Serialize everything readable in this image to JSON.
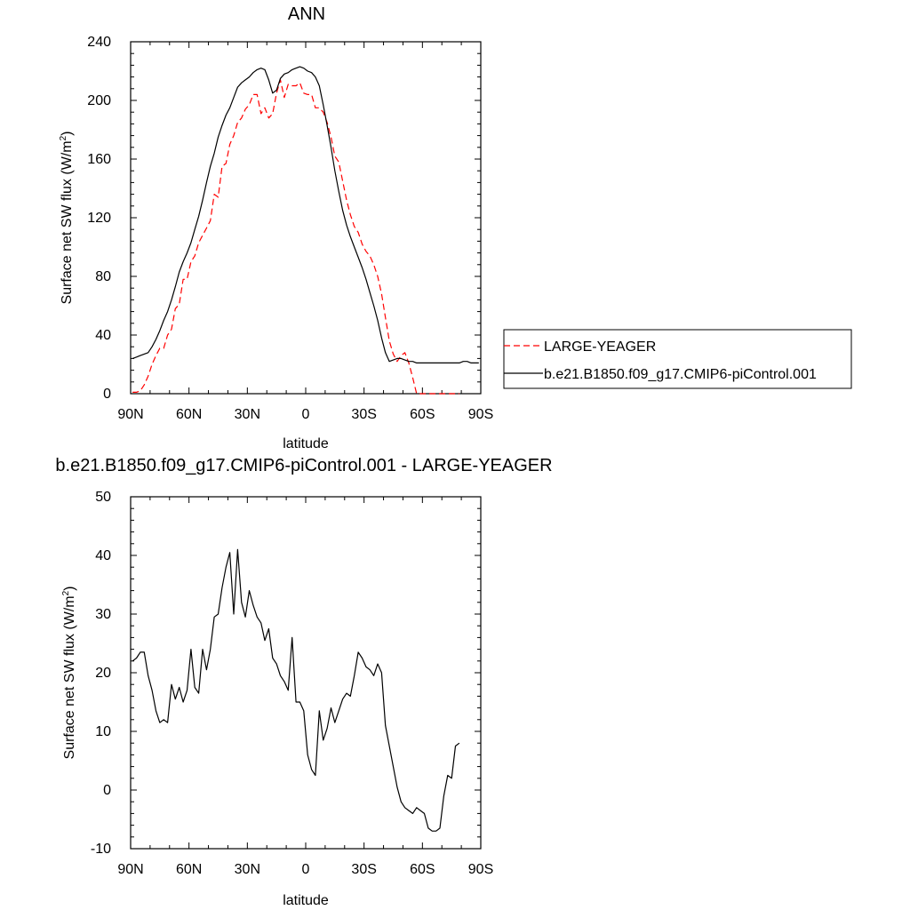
{
  "chart_data": [
    {
      "type": "line",
      "title": "ANN",
      "xlabel": "latitude",
      "ylabel": "Surface net SW flux (W/m",
      "ylabel_sup": "2",
      "ylabel_close": ")",
      "xlim": [
        90,
        -90
      ],
      "ylim": [
        0,
        240
      ],
      "x_tick_values": [
        90,
        60,
        30,
        0,
        -30,
        -60,
        -90
      ],
      "x_tick_labels": [
        "90N",
        "60N",
        "30N",
        "0",
        "30S",
        "60S",
        "90S"
      ],
      "y_tick_values": [
        0,
        40,
        80,
        120,
        160,
        200,
        240
      ],
      "y_tick_labels": [
        "0",
        "40",
        "80",
        "120",
        "160",
        "200",
        "240"
      ],
      "legend": "right",
      "series": [
        {
          "name": "LARGE-YEAGER",
          "color": "#ff0000",
          "dash": true,
          "x": [
            89,
            87,
            85,
            83,
            81,
            79,
            77,
            75,
            73,
            71,
            69,
            67,
            65,
            63,
            61,
            59,
            57,
            55,
            53,
            51,
            49,
            47,
            45,
            43,
            41,
            39,
            37,
            35,
            33,
            31,
            29,
            27,
            25,
            23,
            21,
            19,
            17,
            15,
            13,
            11,
            9,
            7,
            5,
            3,
            1,
            -1,
            -3,
            -5,
            -7,
            -9,
            -11,
            -13,
            -15,
            -17,
            -19,
            -21,
            -23,
            -25,
            -27,
            -29,
            -31,
            -33,
            -35,
            -37,
            -39,
            -41,
            -43,
            -45,
            -47,
            -49,
            -51,
            -53,
            -55,
            -57,
            -59,
            -61,
            -63,
            -65,
            -67,
            -69,
            -71,
            -73,
            -75,
            -77,
            -79
          ],
          "y": [
            1,
            1,
            2,
            6,
            12,
            20,
            26,
            31,
            31,
            40,
            44,
            58,
            61,
            78,
            78,
            90,
            94,
            103,
            108,
            113,
            118,
            136,
            134,
            155,
            157,
            170,
            176,
            185,
            188,
            194,
            197,
            204,
            204,
            191,
            195,
            188,
            191,
            205,
            214,
            202,
            211,
            210,
            210,
            212,
            205,
            204,
            204,
            195,
            195,
            192,
            185,
            175,
            162,
            158,
            145,
            132,
            122,
            114,
            110,
            102,
            97,
            94,
            88,
            80,
            68,
            52,
            36,
            27,
            22,
            26,
            28,
            21,
            11,
            0,
            0,
            0,
            0,
            0,
            0,
            0,
            0,
            0,
            0,
            0,
            0
          ]
        },
        {
          "name": "b.e21.B1850.f09_g17.CMIP6-piControl.001",
          "color": "#000000",
          "dash": false,
          "x": [
            89,
            87,
            85,
            83,
            81,
            79,
            77,
            75,
            73,
            71,
            69,
            67,
            65,
            63,
            61,
            59,
            57,
            55,
            53,
            51,
            49,
            47,
            45,
            43,
            41,
            39,
            37,
            35,
            33,
            31,
            29,
            27,
            25,
            23,
            21,
            19,
            17,
            15,
            13,
            11,
            9,
            7,
            5,
            3,
            1,
            -1,
            -3,
            -5,
            -7,
            -9,
            -11,
            -13,
            -15,
            -17,
            -19,
            -21,
            -23,
            -25,
            -27,
            -29,
            -31,
            -33,
            -35,
            -37,
            -39,
            -41,
            -43,
            -45,
            -47,
            -49,
            -51,
            -53,
            -55,
            -57,
            -59,
            -61,
            -63,
            -65,
            -67,
            -69,
            -71,
            -73,
            -75,
            -77,
            -79,
            -81,
            -83,
            -85,
            -87,
            -89
          ],
          "y": [
            24,
            25,
            26,
            27,
            28,
            32,
            37,
            43,
            50,
            56,
            64,
            73,
            83,
            90,
            96,
            103,
            112,
            121,
            132,
            144,
            155,
            164,
            175,
            183,
            190,
            195,
            202,
            209,
            212,
            214,
            216,
            219,
            221,
            222,
            221,
            214,
            205,
            207,
            215,
            218,
            219,
            221,
            222,
            223,
            222,
            220,
            219,
            216,
            210,
            197,
            183,
            168,
            152,
            138,
            125,
            115,
            107,
            100,
            93,
            86,
            78,
            69,
            60,
            50,
            38,
            28,
            22,
            23,
            24,
            24,
            23,
            22,
            22,
            21,
            21,
            21,
            21,
            21,
            21,
            21,
            21,
            21,
            21,
            21,
            21,
            22,
            22,
            21,
            21,
            21
          ]
        }
      ]
    },
    {
      "type": "line",
      "title": "b.e21.B1850.f09_g17.CMIP6-piControl.001 - LARGE-YEAGER",
      "xlabel": "latitude",
      "ylabel": "Surface net SW flux (W/m",
      "ylabel_sup": "2",
      "ylabel_close": ")",
      "xlim": [
        90,
        -90
      ],
      "ylim": [
        -10,
        50
      ],
      "x_tick_values": [
        90,
        60,
        30,
        0,
        -30,
        -60,
        -90
      ],
      "x_tick_labels": [
        "90N",
        "60N",
        "30N",
        "0",
        "30S",
        "60S",
        "90S"
      ],
      "y_tick_values": [
        -10,
        0,
        10,
        20,
        30,
        40,
        50
      ],
      "y_tick_labels": [
        "-10",
        "0",
        "10",
        "20",
        "30",
        "40",
        "50"
      ],
      "series": [
        {
          "color": "#000000",
          "dash": false,
          "x": [
            89,
            87,
            85,
            83,
            81,
            79,
            77,
            75,
            73,
            71,
            69,
            67,
            65,
            63,
            61,
            59,
            57,
            55,
            53,
            51,
            49,
            47,
            45,
            43,
            41,
            39,
            37,
            35,
            33,
            31,
            29,
            27,
            25,
            23,
            21,
            19,
            17,
            15,
            13,
            11,
            9,
            7,
            5,
            3,
            1,
            -1,
            -3,
            -5,
            -7,
            -9,
            -11,
            -13,
            -15,
            -17,
            -19,
            -21,
            -23,
            -25,
            -27,
            -29,
            -31,
            -33,
            -35,
            -37,
            -39,
            -41,
            -43,
            -45,
            -47,
            -49,
            -51,
            -53,
            -55,
            -57,
            -59,
            -61,
            -63,
            -65,
            -67,
            -69,
            -71,
            -73,
            -75,
            -77,
            -79
          ],
          "y": [
            22,
            22.5,
            23.5,
            23.5,
            19.5,
            17,
            13.5,
            11.5,
            12,
            11.5,
            18,
            15.5,
            17.5,
            15,
            17,
            24,
            17.5,
            16.5,
            24,
            20.5,
            24,
            29.5,
            30,
            34.5,
            38,
            40.5,
            30,
            41,
            32,
            29.5,
            34,
            31.5,
            29.5,
            28.5,
            25.5,
            27.5,
            22.5,
            21.5,
            19.5,
            18.5,
            17,
            26,
            15,
            15,
            13.5,
            6,
            3.5,
            2.5,
            13.5,
            8.5,
            10.5,
            14,
            11.5,
            13.5,
            15.5,
            16.5,
            16,
            19.5,
            23.5,
            22.5,
            21,
            20.5,
            19.5,
            21.5,
            20,
            11,
            7.5,
            4,
            0.5,
            -2,
            -3,
            -3.5,
            -4,
            -3,
            -3.5,
            -4,
            -6.5,
            -7,
            -7,
            -6.5,
            -1,
            2.5,
            2,
            7.5,
            8
          ]
        }
      ]
    }
  ]
}
